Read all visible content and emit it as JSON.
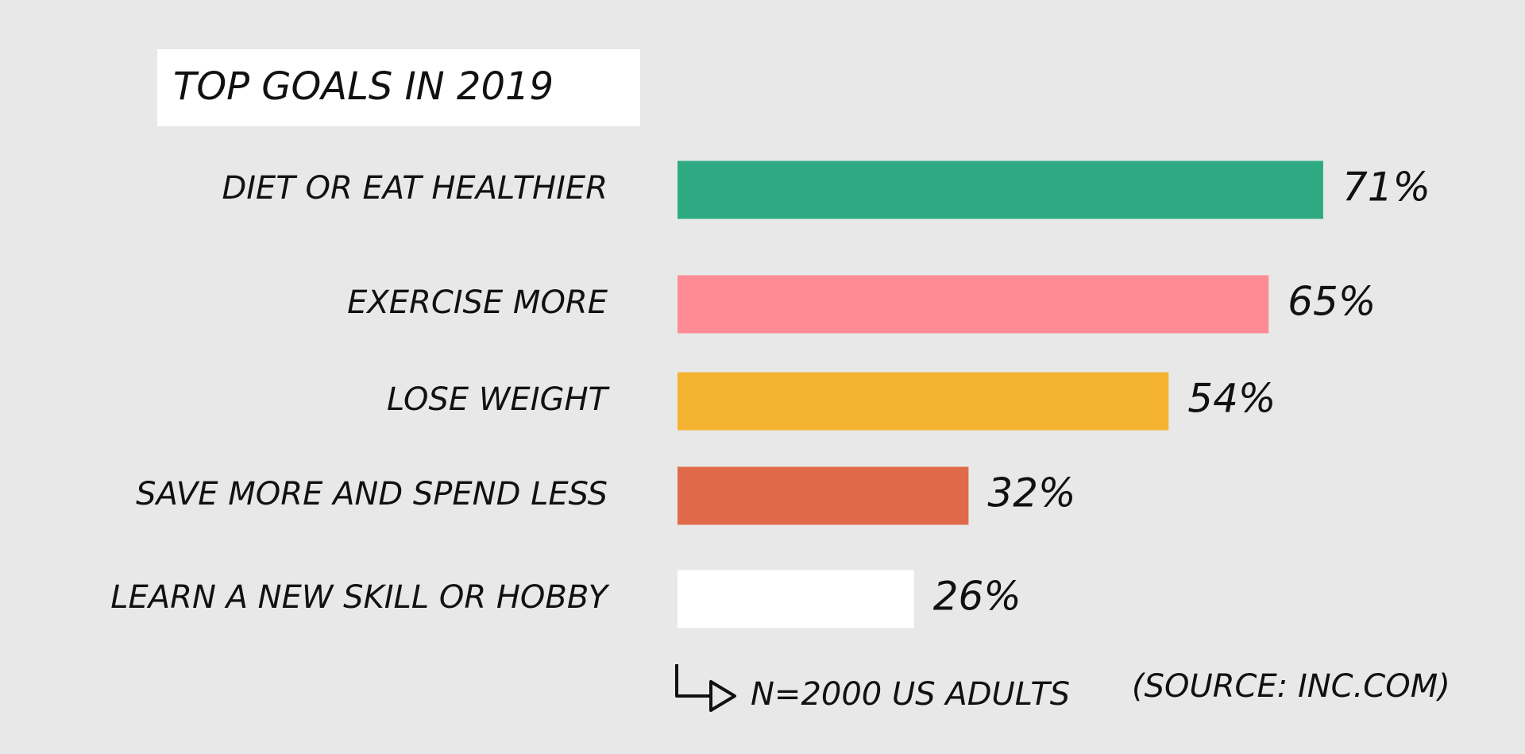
{
  "chart_data": {
    "type": "bar",
    "orientation": "horizontal",
    "title": "TOP GOALS IN 2019",
    "categories": [
      "DIET OR EAT HEALTHIER",
      "EXERCISE MORE",
      "LOSE WEIGHT",
      "SAVE MORE AND SPEND LESS",
      "LEARN A NEW SKILL OR HOBBY"
    ],
    "values": [
      71,
      65,
      54,
      32,
      26
    ],
    "value_labels": [
      "71%",
      "65%",
      "54%",
      "32%",
      "26%"
    ],
    "colors": [
      "#2eaa83",
      "#ff8c94",
      "#f4b331",
      "#e0694a",
      "#ffffff"
    ],
    "annotations": [
      "N=2000 US ADULTS",
      "(SOURCE: INC.COM)"
    ]
  }
}
